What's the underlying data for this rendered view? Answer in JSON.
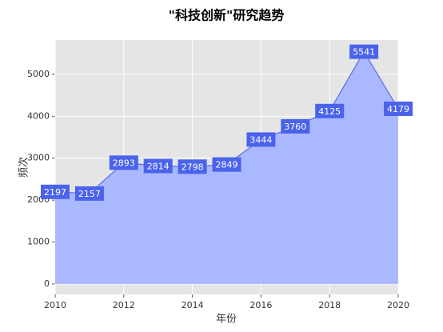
{
  "chart_data": {
    "type": "area",
    "title": "\"科技创新\"研究趋势",
    "x_label": "年份",
    "y_label": "频次",
    "x": [
      2010,
      2011,
      2012,
      2013,
      2014,
      2015,
      2016,
      2017,
      2018,
      2019,
      2020
    ],
    "values": [
      2197,
      2157,
      2893,
      2814,
      2798,
      2849,
      3444,
      3760,
      4125,
      5541,
      4179
    ],
    "color": "#5a6fe0",
    "fill_color": "#aab8ff",
    "label_color": "#4a63ea",
    "xlim": [
      2010,
      2020
    ],
    "xticks": [
      2010,
      2012,
      2014,
      2016,
      2018,
      2020
    ],
    "ylim": [
      -250,
      5820
    ],
    "yticks": [
      0,
      1000,
      2000,
      3000,
      4000,
      5000
    ],
    "grid": true
  }
}
